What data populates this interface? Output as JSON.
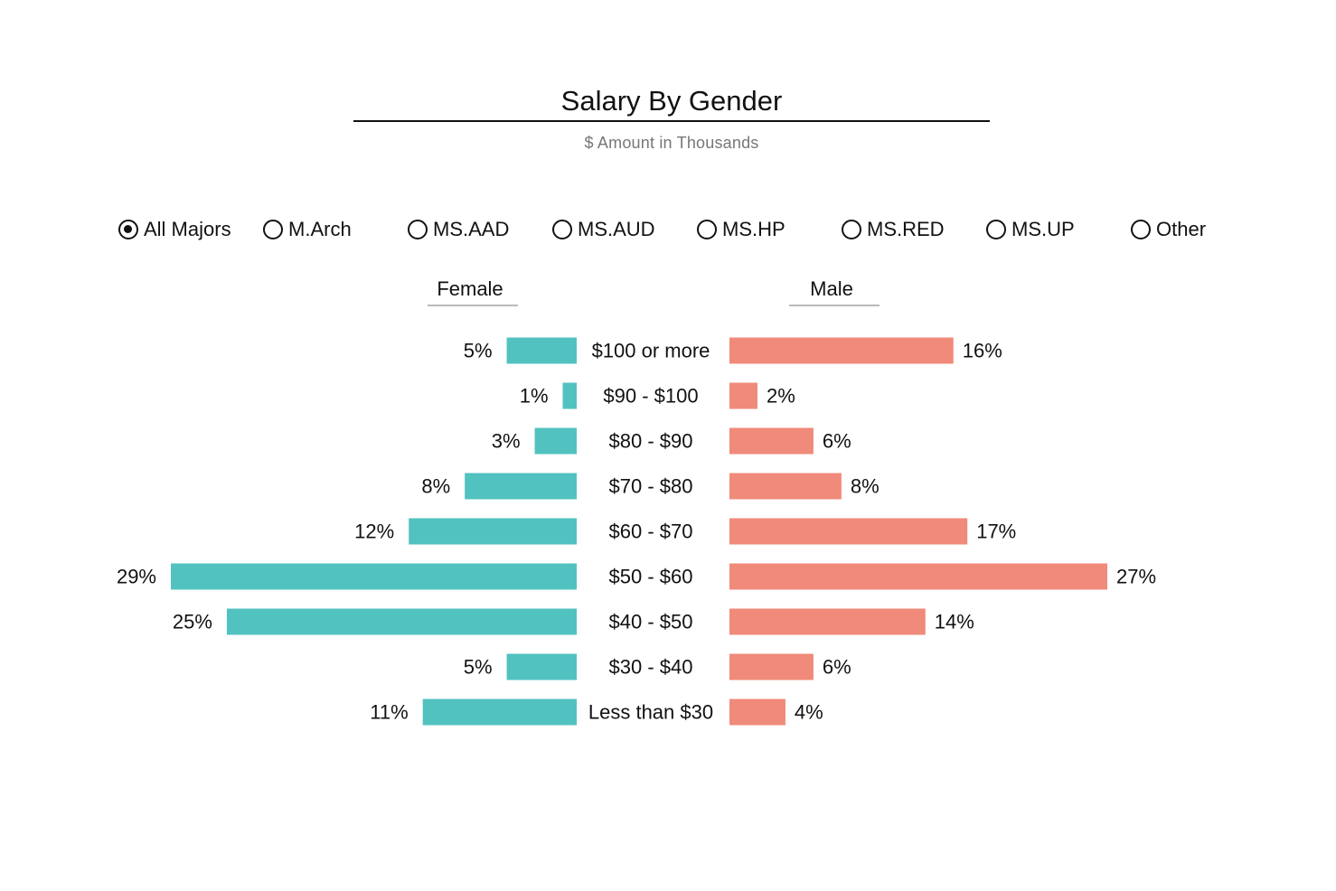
{
  "title": "Salary By Gender",
  "subtitle": "$ Amount in Thousands",
  "filters": {
    "selected": "All Majors",
    "options": [
      "All Majors",
      "M.Arch",
      "MS.AAD",
      "MS.AUD",
      "MS.HP",
      "MS.RED",
      "MS.UP",
      "Other"
    ]
  },
  "columns": {
    "female": "Female",
    "male": "Male"
  },
  "colors": {
    "female": "#52c2c0",
    "male": "#f08a7a"
  },
  "chart_data": {
    "type": "bar",
    "orientation": "horizontal-diverging",
    "title": "Salary By Gender",
    "subtitle": "$ Amount in Thousands",
    "categories": [
      "$100 or more",
      "$90 - $100",
      "$80 - $90",
      "$70 - $80",
      "$60 - $70",
      "$50 - $60",
      "$40 - $50",
      "$30 - $40",
      "Less than $30"
    ],
    "series": [
      {
        "name": "Female",
        "values": [
          5,
          1,
          3,
          8,
          12,
          29,
          25,
          5,
          11
        ],
        "direction": "left"
      },
      {
        "name": "Male",
        "values": [
          16,
          2,
          6,
          8,
          17,
          27,
          14,
          6,
          4
        ],
        "direction": "right"
      }
    ],
    "value_format": "{v}%",
    "xlim": [
      0,
      29
    ],
    "grid": false
  }
}
